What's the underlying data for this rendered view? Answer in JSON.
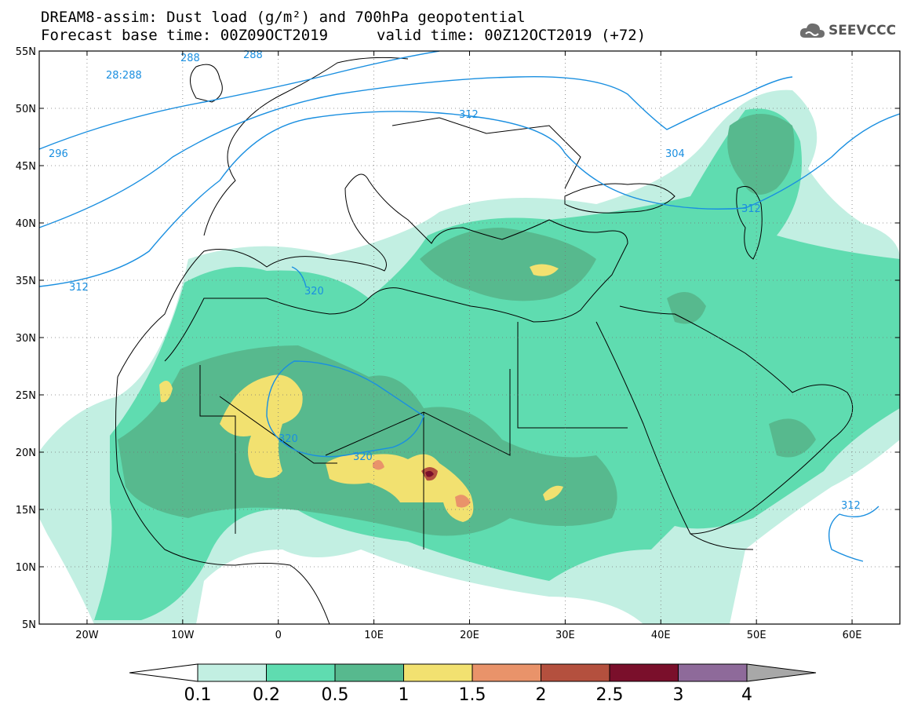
{
  "header": {
    "line1": "DREAM8-assim: Dust load (g/m²) and 700hPa geopotential",
    "line2": "Forecast base time: 00Z09OCT2019",
    "line3": "valid time: 00Z12OCT2019 (+72)"
  },
  "logo": {
    "text": "SEEVCCC",
    "icon": "cloud-icon"
  },
  "axes": {
    "lat_labels": [
      "55N",
      "50N",
      "45N",
      "40N",
      "35N",
      "30N",
      "25N",
      "20N",
      "15N",
      "10N",
      "5N"
    ],
    "lon_labels": [
      "20W",
      "10W",
      "0",
      "10E",
      "20E",
      "30E",
      "40E",
      "50E",
      "60E"
    ],
    "lon_range": [
      -25,
      65
    ],
    "lat_range": [
      5,
      55
    ]
  },
  "colorbar": {
    "labels": [
      "0.1",
      "0.2",
      "0.5",
      "1",
      "1.5",
      "2",
      "2.5",
      "3",
      "4"
    ],
    "colors": [
      "#c2efe2",
      "#5fdcb0",
      "#57b98e",
      "#f2e170",
      "#e9936a",
      "#b4503e",
      "#7a0f2b",
      "#8e6a9a"
    ],
    "under_color": "#ffffff",
    "over_color": "#a8a8a8"
  },
  "contour_labels": [
    {
      "text": "296"
    },
    {
      "text": "312"
    },
    {
      "text": "28:288"
    },
    {
      "text": "288"
    },
    {
      "text": "288"
    },
    {
      "text": "312"
    },
    {
      "text": "304"
    },
    {
      "text": "312"
    },
    {
      "text": "320"
    },
    {
      "text": "320"
    },
    {
      "text": "320"
    },
    {
      "text": "312"
    }
  ]
}
